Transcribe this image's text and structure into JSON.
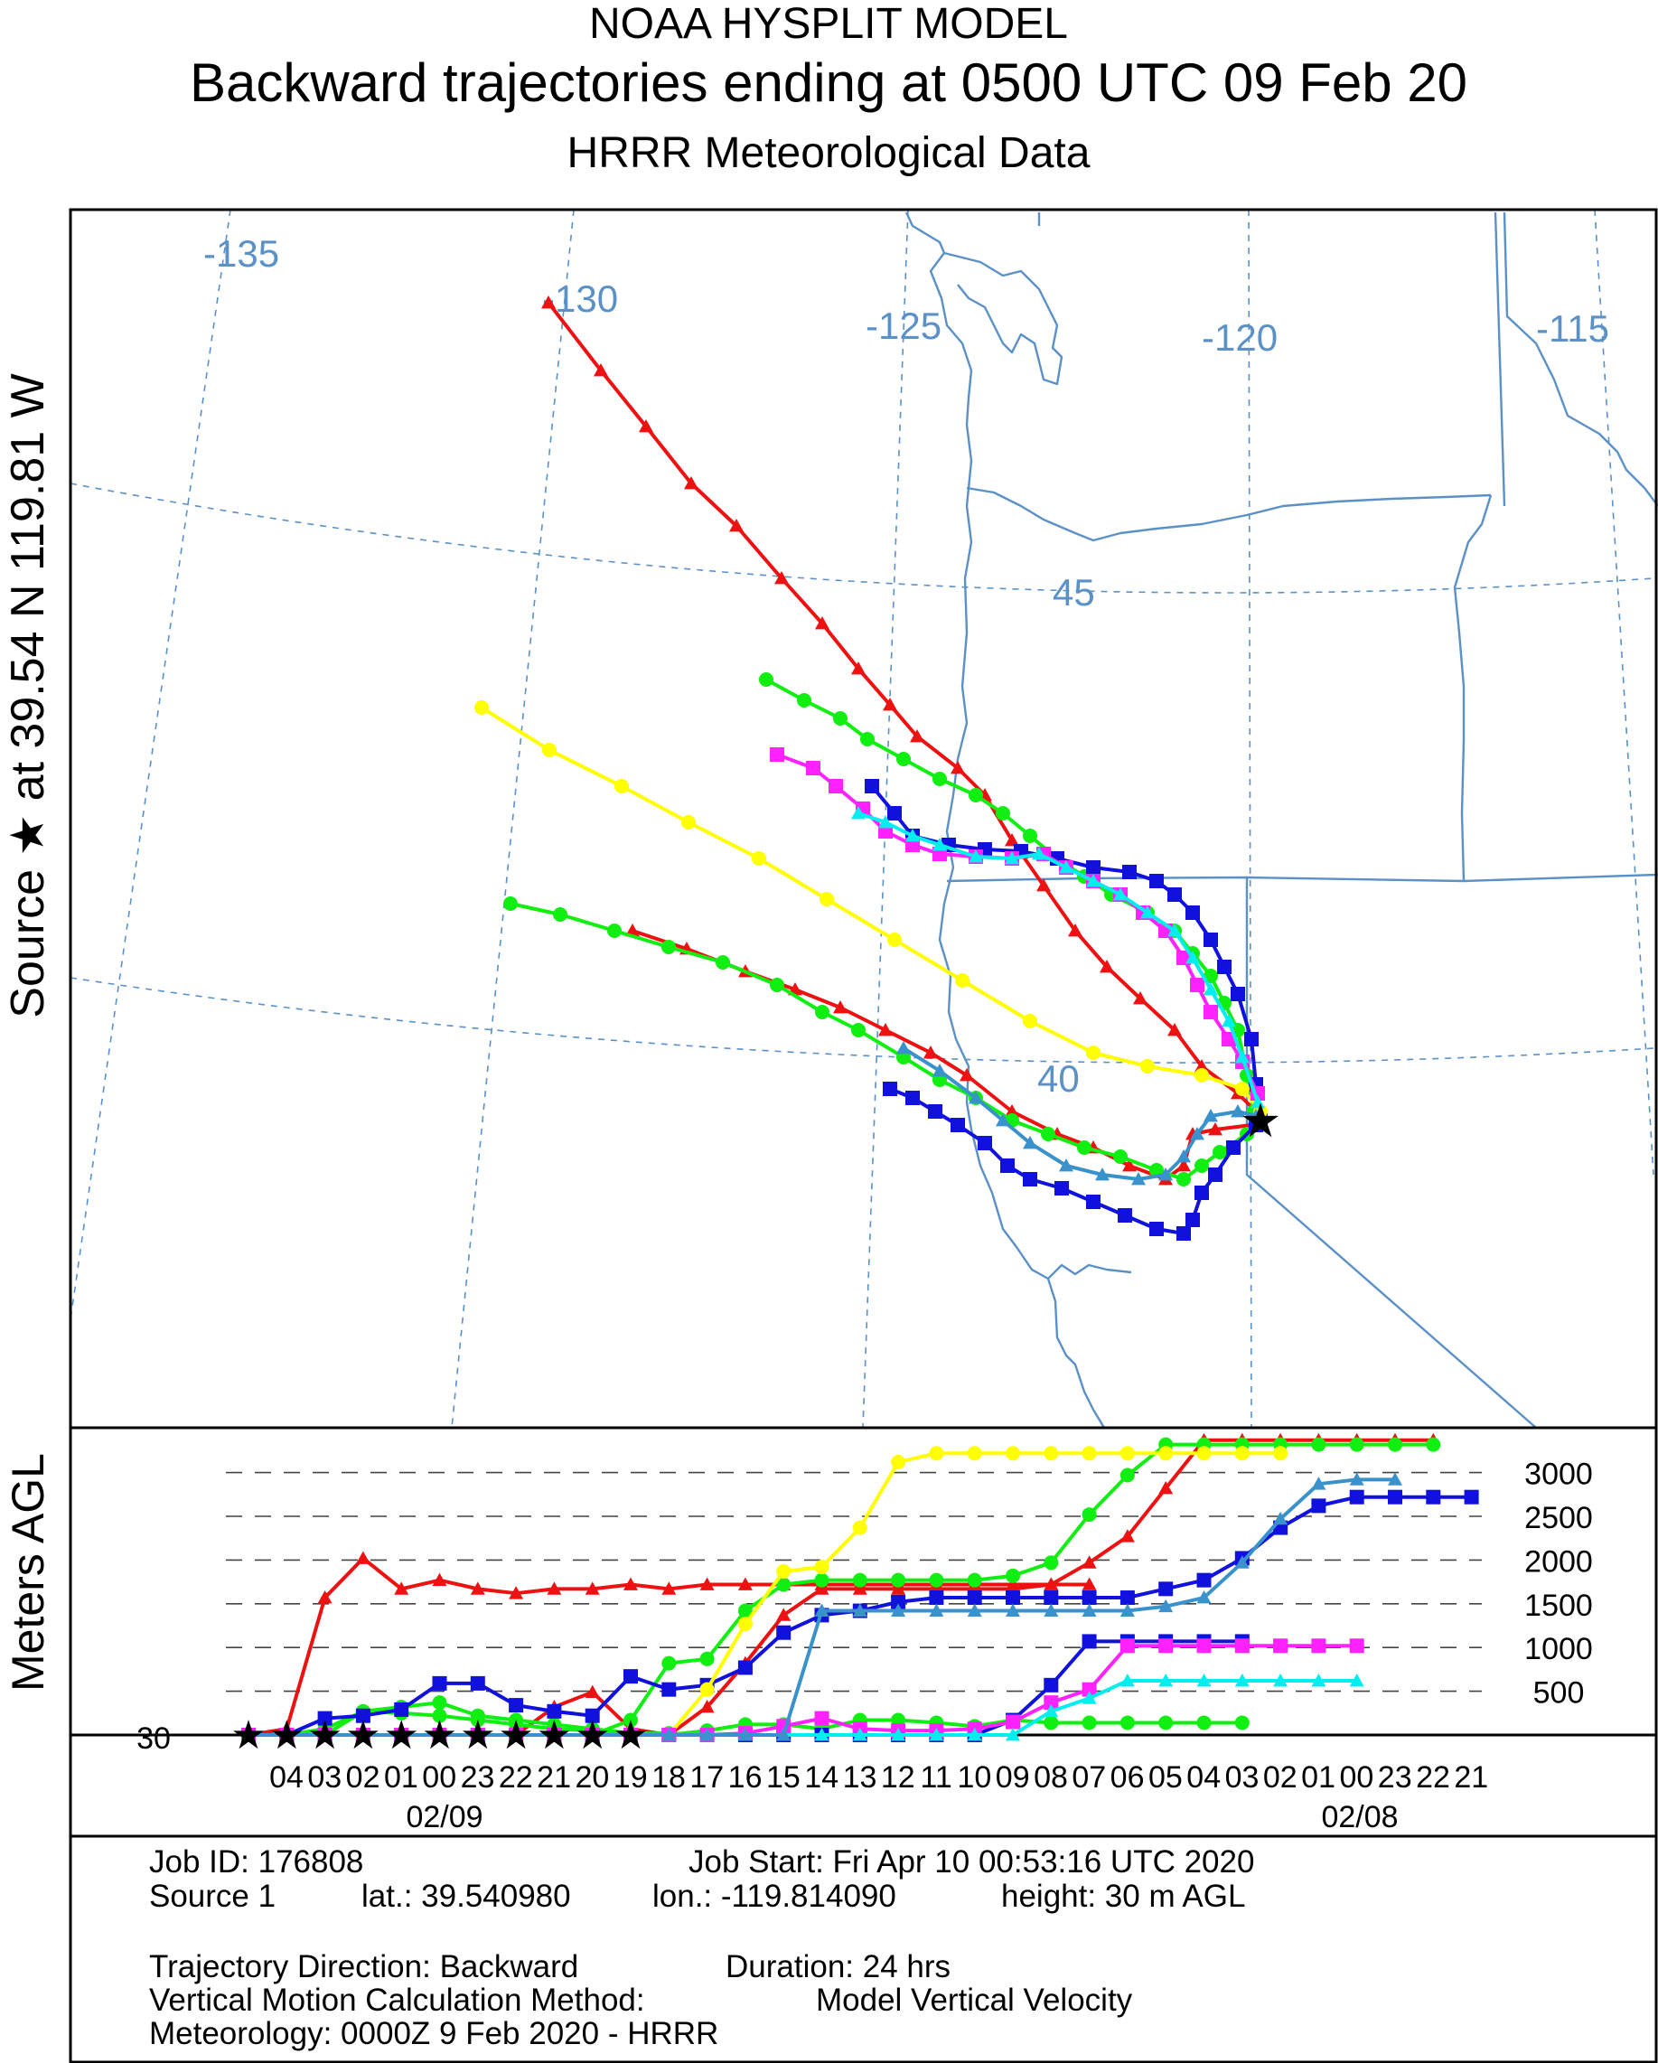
{
  "header": {
    "line1": "NOAA HYSPLIT MODEL",
    "line2": "Backward trajectories ending at 0500 UTC 09 Feb 20",
    "line3": "HRRR Meteorological Data"
  },
  "side_label": "Source ★  at   39.54 N  119.81 W",
  "vertical_label": "Meters AGL",
  "grid_labels": {
    "lon": [
      "-135",
      "-130",
      "-125",
      "-120",
      "-115"
    ],
    "lat": [
      "45",
      "40"
    ]
  },
  "footer": {
    "job_id": "Job ID: 176808",
    "job_start": "Job Start: Fri Apr 10 00:53:16 UTC 2020",
    "source": "Source 1",
    "lat": "lat.: 39.540980",
    "lon": "lon.: -119.814090",
    "height": "height: 30 m AGL",
    "direction": "Trajectory Direction: Backward",
    "duration": "Duration: 24 hrs",
    "vmethod_label": "Vertical Motion Calculation Method:",
    "vmethod_value": "Model Vertical Velocity",
    "meteorology": "Meteorology: 0000Z  9 Feb 2020 - HRRR"
  },
  "colors": {
    "red": "#ee1111",
    "green": "#11ee11",
    "blue": "#1111dd",
    "yellow": "#ffff00",
    "magenta": "#ff22ff",
    "cyan": "#00eeee",
    "steelblue": "#3a92cc",
    "map": "#5b91c6"
  },
  "chart_data": {
    "type": "line",
    "title": "Backward trajectories ending at 0500 UTC 09 Feb 20",
    "source": {
      "lat": 39.54,
      "lon": -119.81,
      "height_m_agl": 30
    },
    "xlabel": "",
    "ylabel": "Meters AGL",
    "y_ticks": [
      "500",
      "1000",
      "1500",
      "2000",
      "2500",
      "3000"
    ],
    "y_baseline_label": "30",
    "ylim": [
      30,
      3300
    ],
    "x_ticks": [
      "04",
      "03",
      "02",
      "01",
      "00",
      "23",
      "22",
      "21",
      "20",
      "19",
      "18",
      "17",
      "16",
      "15",
      "14",
      "13",
      "12",
      "11",
      "10",
      "09",
      "08",
      "07",
      "06",
      "05",
      "04",
      "03",
      "02",
      "01",
      "00",
      "23",
      "22",
      "21"
    ],
    "x_date_labels": [
      {
        "label": "02/09",
        "at_tick": "00"
      },
      {
        "label": "02/08",
        "at_tick": "00b"
      }
    ],
    "grid": "dashed horizontal lines at 500 m intervals",
    "series": [
      {
        "color": "red",
        "marker": "triangle",
        "values": [
          30,
          100,
          1600,
          2050,
          1700,
          1800,
          1700,
          1650,
          1700,
          1700,
          1750,
          1700,
          1750,
          1750,
          1750,
          1750,
          1750,
          1750,
          1750,
          1750,
          1750,
          1750,
          1750
        ]
      },
      {
        "color": "red",
        "marker": "triangle",
        "values": [
          30,
          30,
          30,
          30,
          30,
          30,
          30,
          30,
          350,
          520,
          100,
          30,
          350,
          850,
          1400,
          1700,
          1700,
          1700,
          1700,
          1700,
          1700,
          1750,
          2000,
          2300,
          2850,
          3400,
          3400,
          3400,
          3400,
          3400,
          3400,
          3400
        ]
      },
      {
        "color": "green",
        "marker": "circle",
        "values": [
          30,
          30,
          100,
          300,
          280,
          250,
          200,
          150,
          100,
          80,
          50,
          50,
          30,
          30,
          30,
          30,
          30,
          30
        ]
      },
      {
        "color": "green",
        "marker": "circle",
        "values": [
          30,
          30,
          30,
          30,
          30,
          30,
          30,
          30,
          30,
          30,
          200,
          850,
          900,
          1450,
          1750,
          1800,
          1800,
          1800,
          1800,
          1800,
          1850,
          2000,
          2550,
          3000,
          3350,
          3350,
          3350,
          3350,
          3350,
          3350,
          3350,
          3350
        ]
      },
      {
        "color": "green",
        "marker": "circle",
        "values": [
          30,
          30,
          30,
          300,
          350,
          400,
          250,
          200,
          150,
          100,
          50,
          30,
          80,
          150,
          150,
          100,
          200,
          200,
          170,
          130,
          200,
          170,
          170,
          170,
          170,
          170,
          170
        ]
      },
      {
        "color": "blue",
        "marker": "square",
        "values": [
          30,
          30,
          220,
          250,
          320,
          620,
          620,
          370,
          300,
          250,
          700,
          550,
          600,
          800,
          1200,
          1400,
          1450,
          1550,
          1600,
          1600,
          1600,
          1600,
          1600,
          1600,
          1700,
          1800,
          2050,
          2400,
          2650,
          2750,
          2750,
          2750,
          2750
        ]
      },
      {
        "color": "blue",
        "marker": "square",
        "values": [
          30,
          30,
          30,
          30,
          30,
          30,
          30,
          30,
          30,
          30,
          30,
          30,
          30,
          30,
          30,
          30,
          30,
          30,
          30,
          30,
          200,
          600,
          1100,
          1100,
          1100,
          1100,
          1100
        ]
      },
      {
        "color": "yellow",
        "marker": "circle",
        "values": [
          30,
          30,
          30,
          30,
          30,
          30,
          30,
          30,
          30,
          30,
          30,
          30,
          550,
          1300,
          1900,
          1950,
          2400,
          3150,
          3250,
          3250,
          3250,
          3250,
          3250,
          3250,
          3250,
          3250,
          3250,
          3250
        ]
      },
      {
        "color": "magenta",
        "marker": "square",
        "values": [
          30,
          30,
          30,
          30,
          30,
          30,
          30,
          30,
          30,
          30,
          30,
          30,
          30,
          50,
          130,
          220,
          100,
          80,
          80,
          100,
          180,
          400,
          550,
          1050,
          1050,
          1050,
          1050,
          1050,
          1050,
          1050
        ]
      },
      {
        "color": "cyan",
        "marker": "triangle",
        "values": [
          30,
          30,
          30,
          30,
          30,
          30,
          30,
          30,
          30,
          30,
          30,
          30,
          30,
          30,
          30,
          30,
          30,
          30,
          30,
          30,
          30,
          300,
          450,
          650,
          650,
          650,
          650,
          650,
          650,
          650
        ]
      },
      {
        "color": "steelblue",
        "marker": "triangle",
        "values": [
          30,
          30,
          30,
          30,
          30,
          30,
          30,
          30,
          30,
          30,
          30,
          30,
          30,
          30,
          30,
          1450,
          1450,
          1450,
          1450,
          1450,
          1450,
          1450,
          1450,
          1450,
          1500,
          1600,
          2000,
          2500,
          2900,
          2950,
          2950
        ]
      }
    ]
  }
}
